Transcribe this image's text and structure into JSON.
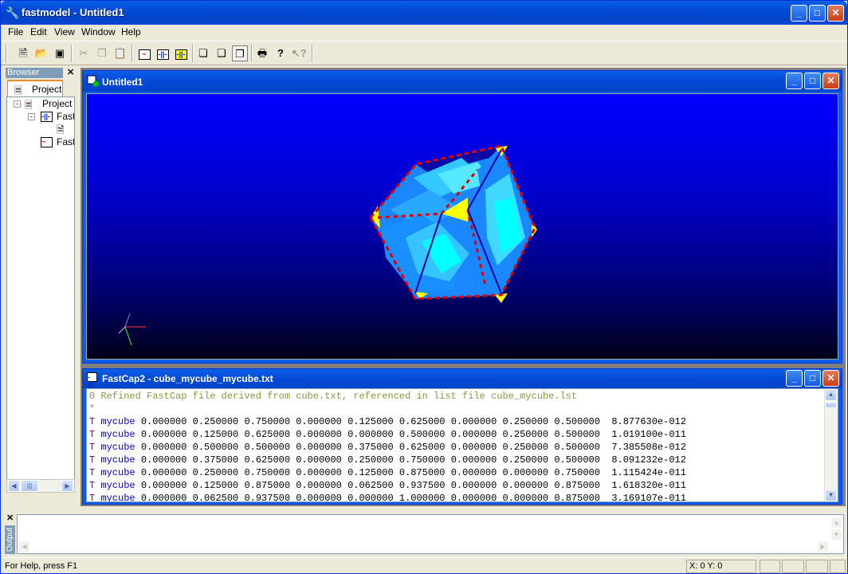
{
  "app": {
    "title": "fastmodel - Untitled1"
  },
  "menu": [
    "File",
    "Edit",
    "View",
    "Window",
    "Help"
  ],
  "toolbar": {
    "icons": [
      "new-icon",
      "open-icon",
      "save-icon",
      "cut-icon",
      "copy-icon",
      "paste-icon",
      "resistor-icon",
      "capacitor-icon",
      "capacitor-yellow-icon",
      "cube-solid-icon",
      "cube-wire-icon",
      "cube-shaded-icon",
      "print-icon",
      "help-icon",
      "context-help-icon"
    ]
  },
  "browser": {
    "header": "Browser",
    "tab_label": "Project",
    "tree": {
      "root": "Project",
      "item1": "Fast",
      "item2": "Fast"
    }
  },
  "view_window": {
    "title": "Untitled1"
  },
  "text_window": {
    "title": "FastCap2 - cube_mycube_mycube.txt",
    "header_line": "0 Refined FastCap file derived from cube.txt, referenced in list file cube_mycube.lst",
    "star_line": "*",
    "rows": [
      {
        "t": "T",
        "name": "mycube",
        "vals": "0.000000 0.250000 0.750000 0.000000 0.125000 0.625000 0.000000 0.250000 0.500000  8.877630e-012"
      },
      {
        "t": "T",
        "name": "mycube",
        "vals": "0.000000 0.125000 0.625000 0.000000 0.000000 0.500000 0.000000 0.250000 0.500000  1.019100e-011"
      },
      {
        "t": "T",
        "name": "mycube",
        "vals": "0.000000 0.500000 0.500000 0.000000 0.375000 0.625000 0.000000 0.250000 0.500000  7.385508e-012"
      },
      {
        "t": "T",
        "name": "mycube",
        "vals": "0.000000 0.375000 0.625000 0.000000 0.250000 0.750000 0.000000 0.250000 0.500000  8.091232e-012"
      },
      {
        "t": "T",
        "name": "mycube",
        "vals": "0.000000 0.250000 0.750000 0.000000 0.125000 0.875000 0.000000 0.000000 0.750000  1.115424e-011"
      },
      {
        "t": "T",
        "name": "mycube",
        "vals": "0.000000 0.125000 0.875000 0.000000 0.062500 0.937500 0.000000 0.000000 0.875000  1.618320e-011"
      },
      {
        "t": "T",
        "name": "mycube",
        "vals": "0.000000 0.062500 0.937500 0.000000 0.000000 1.000000 0.000000 0.000000 0.875000  3.169107e-011"
      }
    ]
  },
  "output": {
    "label": "Output"
  },
  "status": {
    "help": "For Help, press F1",
    "coords": "X: 0  Y: 0"
  },
  "colors": {
    "title_blue": "#0349d6",
    "viewport_top": "#0000ff",
    "mesh_cyan": "#00ffff",
    "mesh_blue": "#0a7aff",
    "edge_red": "#e00000",
    "corner_yellow": "#ffff00"
  }
}
